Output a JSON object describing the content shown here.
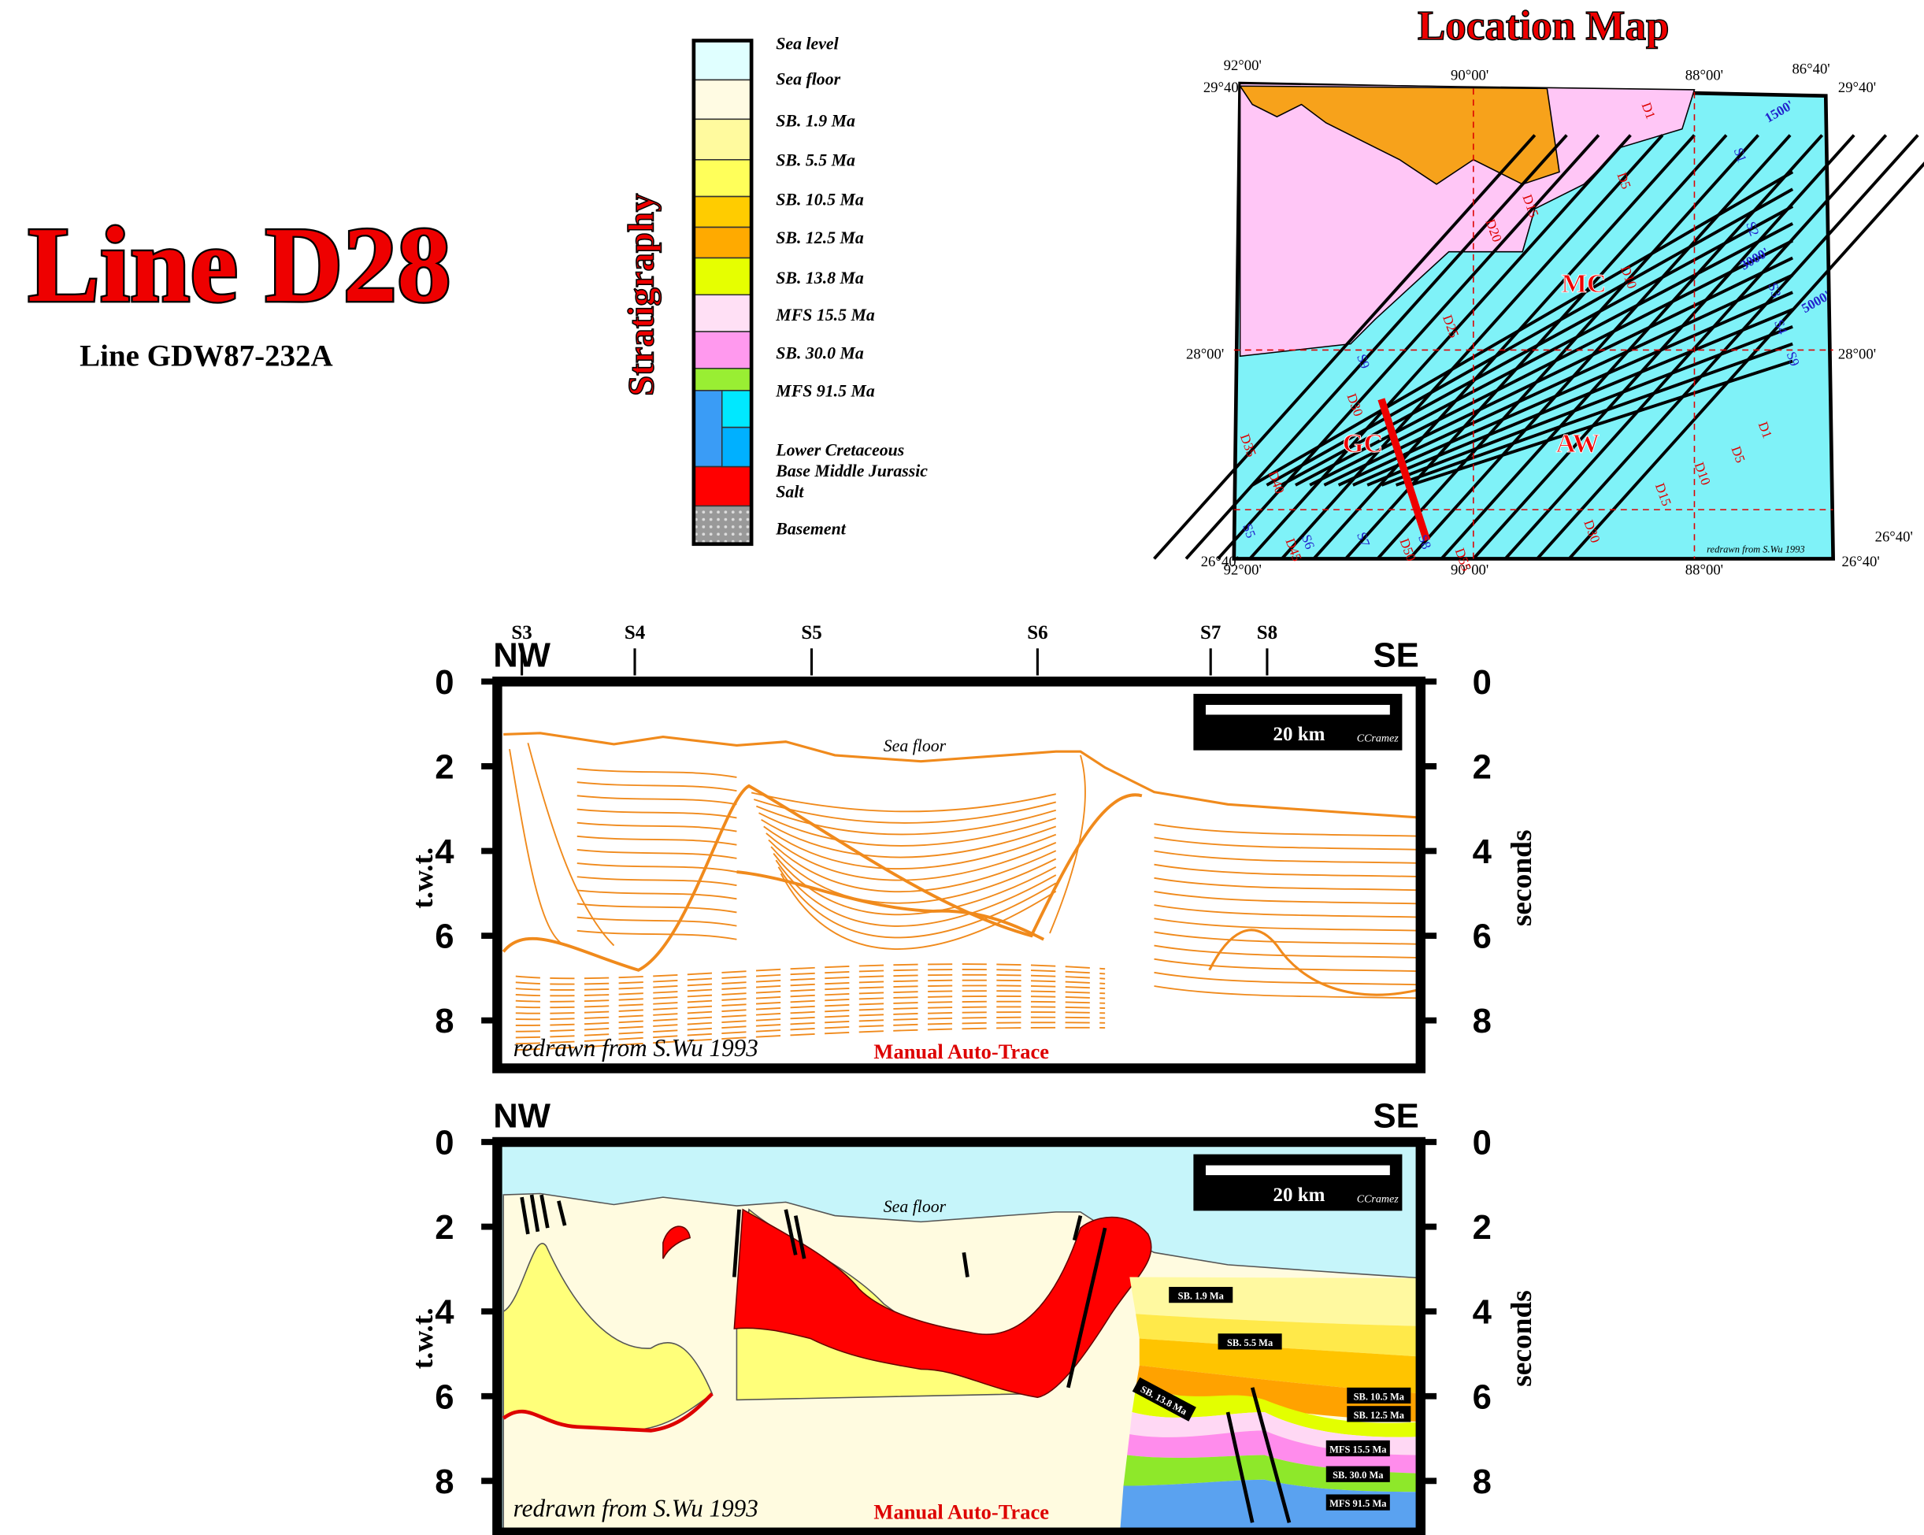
{
  "header": {
    "title": "Line D28",
    "subtitle": "Line GDW87-232A"
  },
  "stratigraphy": {
    "title": "Stratigraphy",
    "units": [
      "Sea level",
      "Sea floor",
      "SB. 1.9 Ma",
      "SB. 5.5 Ma",
      "SB. 10.5 Ma",
      "SB. 12.5 Ma",
      "SB. 13.8 Ma",
      "MFS 15.5 Ma",
      "SB. 30.0 Ma",
      "MFS 91.5 Ma",
      "Lower Cretaceous",
      "Base Middle Jurassic",
      "Salt",
      "Basement"
    ]
  },
  "location_map": {
    "title": "Location Map",
    "top_lon": [
      "92°00'",
      "90°00'",
      "88°00'",
      "86°40'"
    ],
    "bottom_lon": [
      "92°00'",
      "90°00'",
      "88°00'"
    ],
    "left_lat": [
      "29°40'",
      "28°00'",
      "26°40'"
    ],
    "right_lat": [
      "29°40'",
      "28°00'",
      "26°40'",
      "26°40'"
    ],
    "areas": [
      "MC",
      "GC",
      "AW"
    ],
    "line_labels": [
      "D1",
      "D5",
      "D10",
      "D15",
      "D20",
      "D25",
      "D30",
      "D35",
      "D40",
      "D45",
      "D50",
      "D55",
      "D30",
      "D15",
      "D10",
      "D5",
      "D1",
      "S1",
      "S2",
      "S3",
      "S4",
      "S9",
      "S9",
      "S5",
      "S6",
      "S7",
      "S8"
    ],
    "contours": [
      "1500'",
      "3000'",
      "5000'"
    ],
    "credit": "redrawn from S.Wu 1993"
  },
  "sections": {
    "well_labels": [
      "S3",
      "S4",
      "S5",
      "S6",
      "S7",
      "S8"
    ],
    "panels": [
      {
        "left": "NW",
        "right": "SE",
        "y_label": "t.w.t.",
        "y_label_right": "seconds",
        "ticks": [
          "0",
          "2",
          "4",
          "6",
          "8"
        ],
        "sea_floor": "Sea floor",
        "scale": "20 km",
        "author": "CCramez",
        "credit": "redrawn from S.Wu 1993",
        "method": "Manual Auto-Trace"
      },
      {
        "left": "NW",
        "right": "SE",
        "y_label": "t.w.t.",
        "y_label_right": "seconds",
        "ticks": [
          "0",
          "2",
          "4",
          "6",
          "8"
        ],
        "sea_floor": "Sea floor",
        "scale": "20 km",
        "author": "CCramez",
        "credit": "redrawn from S.Wu 1993",
        "method": "Manual Auto-Trace",
        "horizons": [
          "SB. 1.9 Ma",
          "SB. 5.5 Ma",
          "SB. 10.5 Ma",
          "SB. 12.5 Ma",
          "SB. 13.8 Ma",
          "MFS 15.5 Ma",
          "SB. 30.0 Ma",
          "MFS 91.5 Ma"
        ]
      }
    ]
  }
}
